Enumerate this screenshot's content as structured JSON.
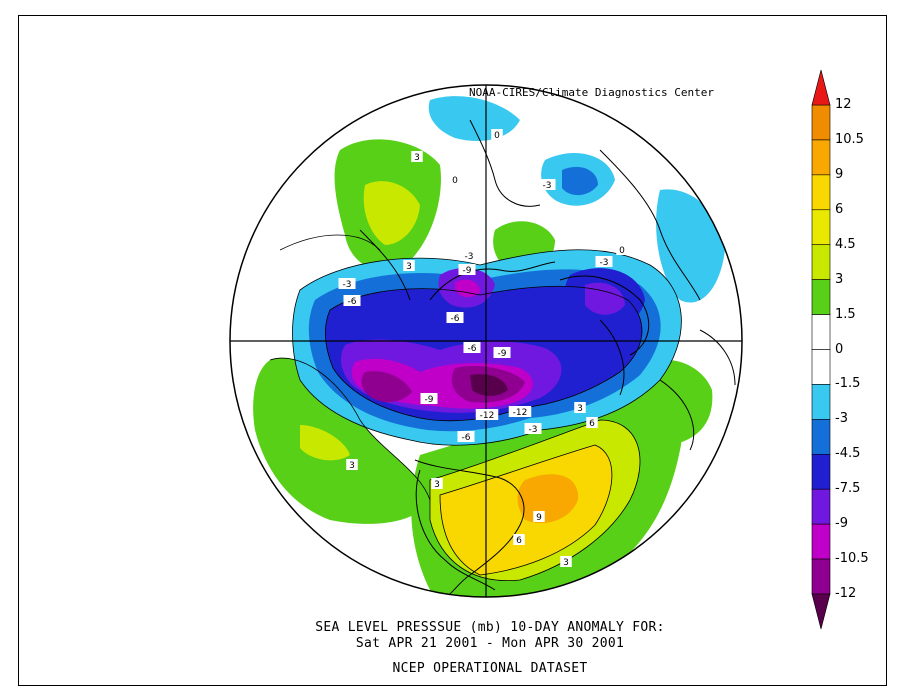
{
  "credit": "NOAA-CIRES/Climate Diagnostics Center",
  "caption": {
    "line1": "SEA LEVEL PRESSSUE (mb)   10-DAY ANOMALY FOR:",
    "line2": "Sat APR 21 2001 - Mon APR 30 2001",
    "line3": "NCEP OPERATIONAL DATASET"
  },
  "colorbar": {
    "labels": [
      "12",
      "10.5",
      "9",
      "6",
      "4.5",
      "3",
      "1.5",
      "0",
      "-1.5",
      "-3",
      "-4.5",
      "-7.5",
      "-9",
      "-10.5",
      "-12"
    ],
    "colors": [
      "#f08c00",
      "#f8a800",
      "#f8d800",
      "#e8e800",
      "#c8e800",
      "#58d018",
      "#ffffff",
      "#ffffff",
      "#38c8f0",
      "#1470d8",
      "#2020d0",
      "#7018e0",
      "#c000c8",
      "#900090"
    ],
    "top_color": "#e81818",
    "bottom_color": "#58004c"
  },
  "contour_labels": [
    {
      "text": "3"
    },
    {
      "text": "3"
    },
    {
      "text": "0"
    },
    {
      "text": "0"
    },
    {
      "text": "-3"
    },
    {
      "text": "-3"
    },
    {
      "text": "-3"
    },
    {
      "text": "-6"
    },
    {
      "text": "-9"
    },
    {
      "text": "-6"
    },
    {
      "text": "-6"
    },
    {
      "text": "-9"
    },
    {
      "text": "-9"
    },
    {
      "text": "-12"
    },
    {
      "text": "-12"
    },
    {
      "text": "-6"
    },
    {
      "text": "-3"
    },
    {
      "text": "3"
    },
    {
      "text": "6"
    },
    {
      "text": "9"
    },
    {
      "text": "6"
    },
    {
      "text": "3"
    },
    {
      "text": "3"
    },
    {
      "text": "3"
    },
    {
      "text": "-3"
    },
    {
      "text": "0"
    }
  ]
}
